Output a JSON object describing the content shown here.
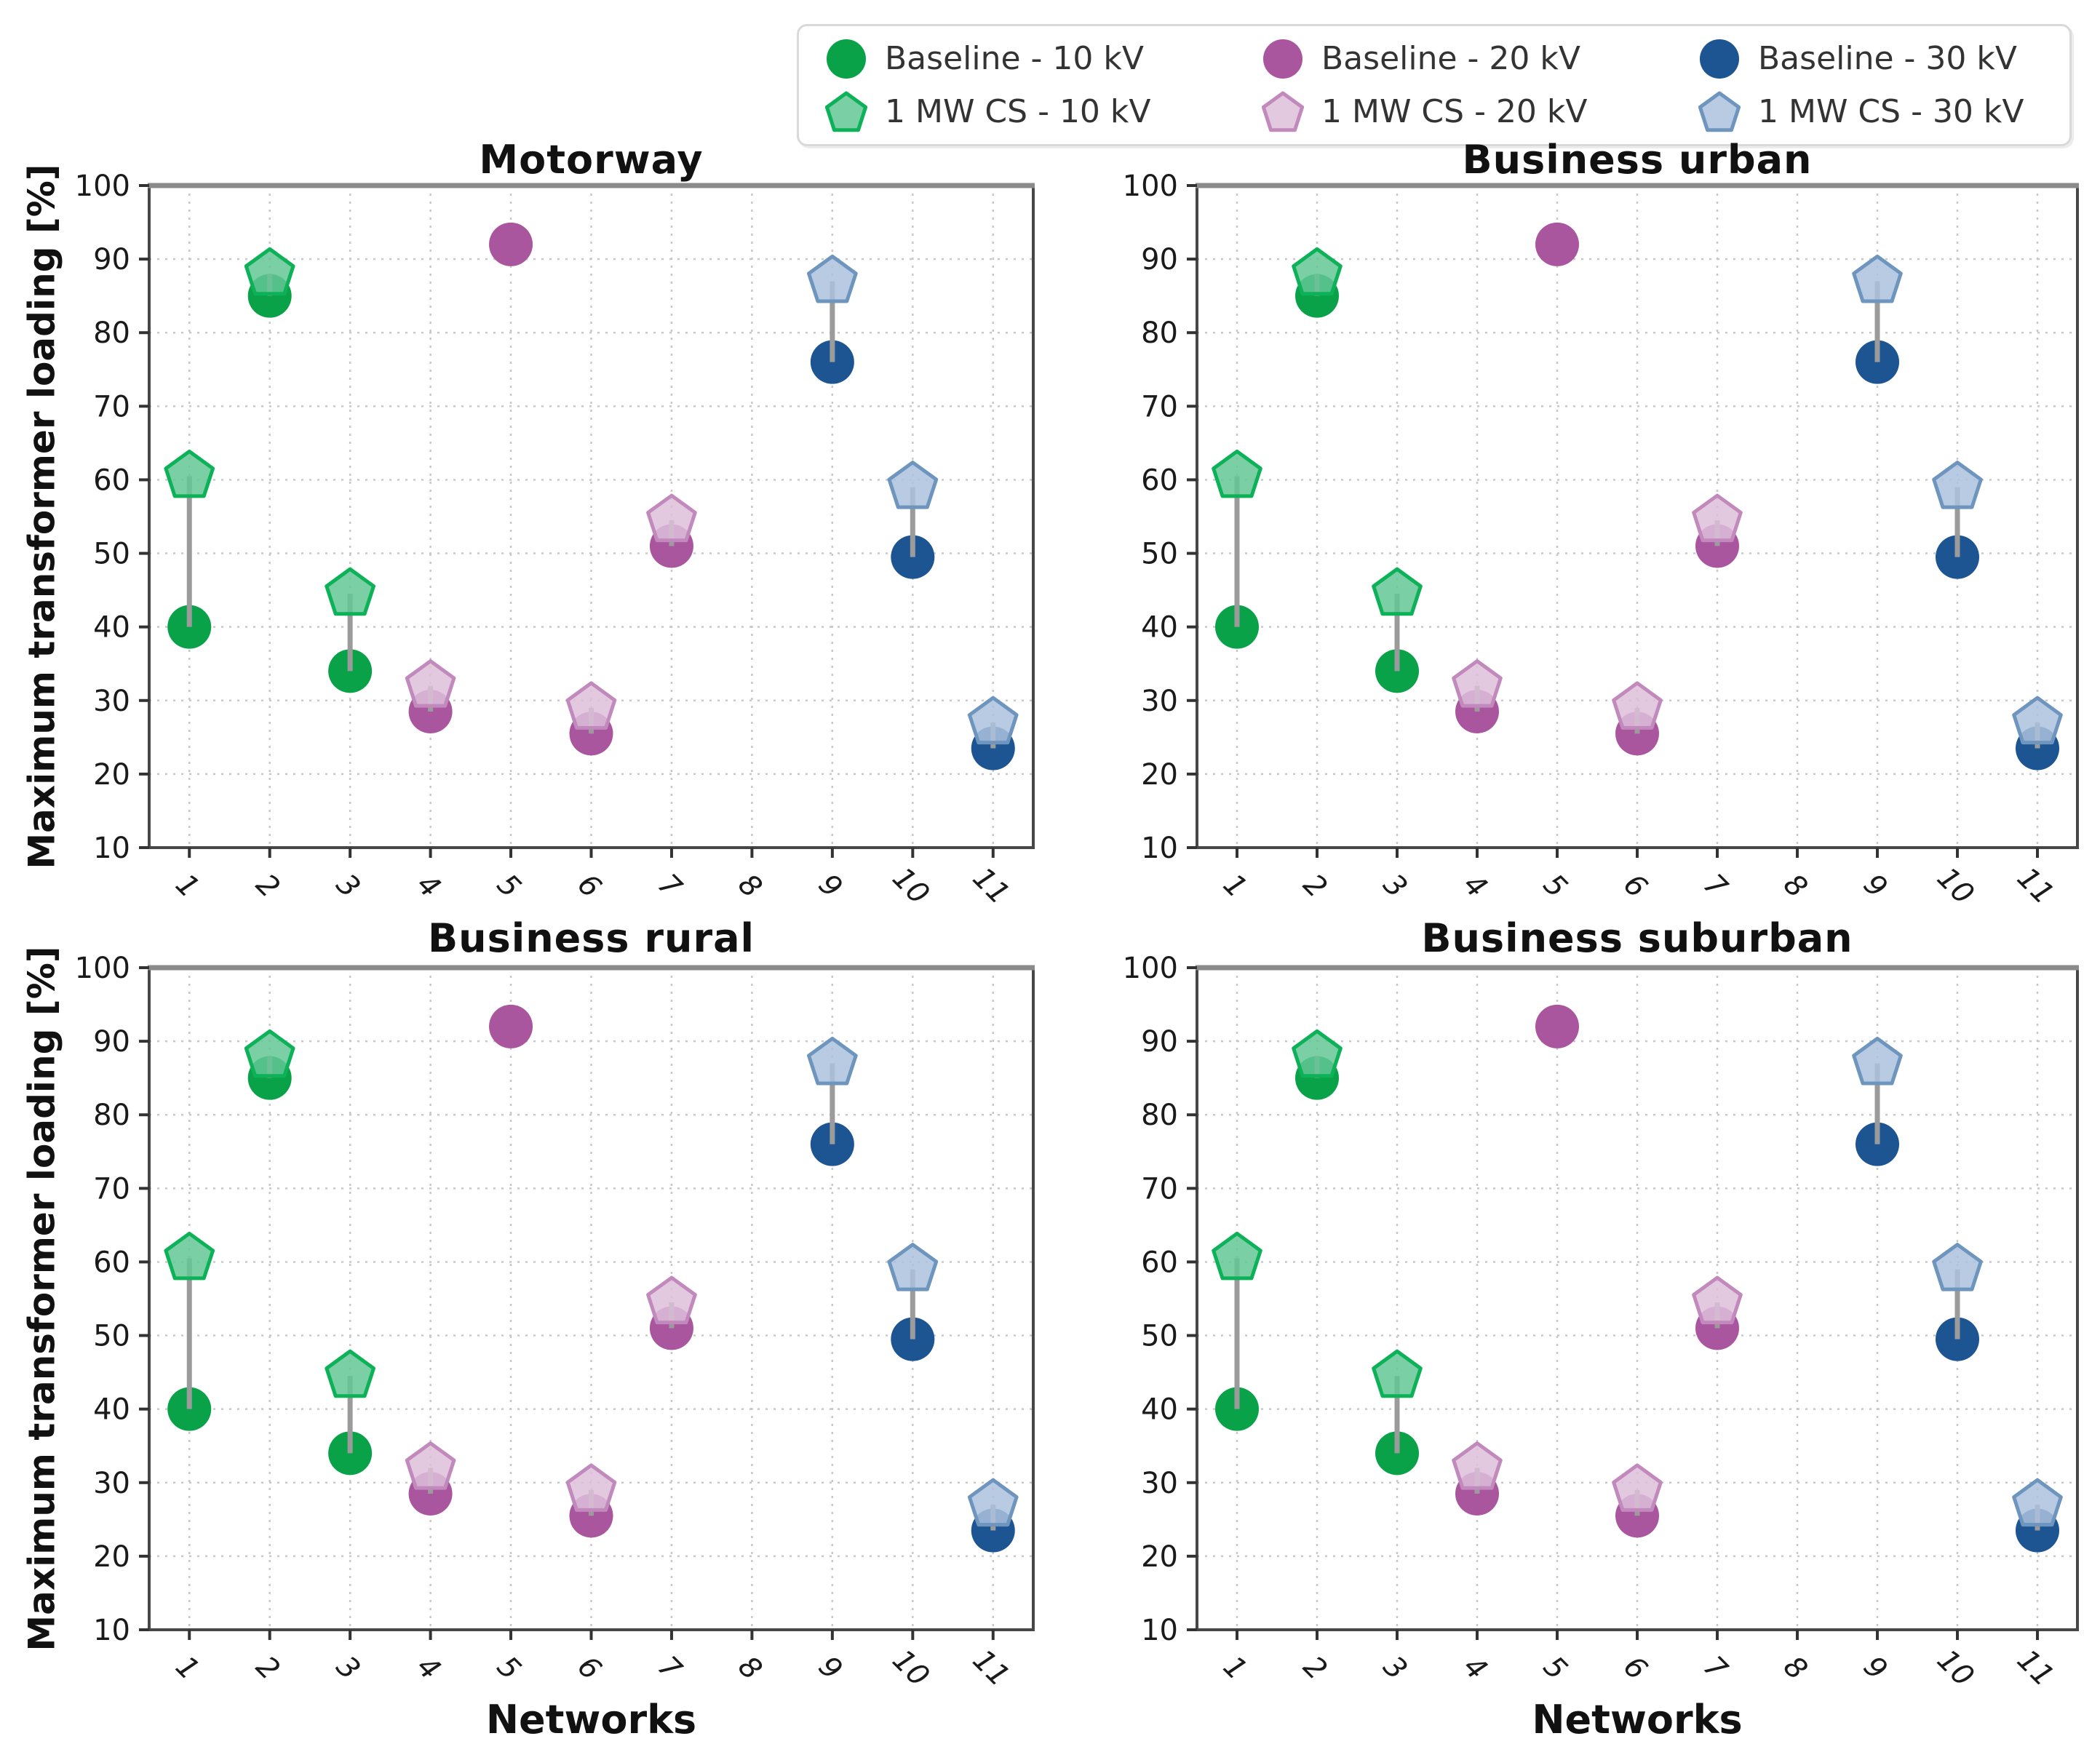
{
  "page": {
    "background": "#ffffff"
  },
  "chart_data": {
    "type": "scatter",
    "panels": [
      "Motorway",
      "Business urban",
      "Business rural",
      "Business suburban"
    ],
    "xlabel": "Networks",
    "ylabel": "Maximum transformer loading [%]",
    "x": [
      1,
      2,
      3,
      4,
      5,
      6,
      7,
      8,
      9,
      10,
      11
    ],
    "ylim": [
      10,
      100
    ],
    "ytick_step": 10,
    "grid": "dotted",
    "legend_position": "top-center-outside",
    "note": "All four panels display identical data values",
    "connector_color": "#9b9b9b",
    "series": [
      {
        "name": "Baseline - 10 kV",
        "marker": "circle",
        "voltage": "10 kV",
        "color": "#0aa249",
        "edge": "#0aa249",
        "values": [
          40,
          85,
          34,
          null,
          null,
          null,
          null,
          null,
          null,
          null,
          null
        ]
      },
      {
        "name": "1 MW CS - 10 kV",
        "marker": "pentagon",
        "voltage": "10 kV",
        "color": "#63c795",
        "edge": "#0db158",
        "values": [
          60.5,
          88,
          44.5,
          null,
          null,
          null,
          null,
          null,
          null,
          null,
          null
        ]
      },
      {
        "name": "Baseline - 20 kV",
        "marker": "circle",
        "voltage": "20 kV",
        "color": "#a9569f",
        "edge": "#a9569f",
        "values": [
          null,
          null,
          null,
          28.5,
          92,
          25.5,
          51,
          null,
          null,
          null,
          null
        ]
      },
      {
        "name": "1 MW CS - 20 kV",
        "marker": "pentagon",
        "voltage": "20 kV",
        "color": "#debfdb",
        "edge": "#c289bc",
        "values": [
          null,
          null,
          null,
          32,
          null,
          29,
          54.5,
          null,
          null,
          null,
          null
        ]
      },
      {
        "name": "Baseline - 30 kV",
        "marker": "circle",
        "voltage": "30 kV",
        "color": "#1d5492",
        "edge": "#1d5492",
        "values": [
          null,
          null,
          null,
          null,
          null,
          null,
          null,
          null,
          76,
          49.5,
          23.5
        ]
      },
      {
        "name": "1 MW CS - 30 kV",
        "marker": "pentagon",
        "voltage": "30 kV",
        "color": "#abc2dd",
        "edge": "#6e95be",
        "values": [
          null,
          null,
          null,
          null,
          null,
          null,
          null,
          null,
          87,
          59,
          27
        ]
      }
    ],
    "pairs": [
      [
        0,
        1
      ],
      [
        2,
        3
      ],
      [
        4,
        5
      ]
    ]
  },
  "legend": {
    "items": [
      {
        "label": "Baseline - 10 kV"
      },
      {
        "label": "1 MW CS - 10 kV"
      },
      {
        "label": "Baseline - 20 kV"
      },
      {
        "label": "1 MW CS - 20 kV"
      },
      {
        "label": "Baseline - 30 kV"
      },
      {
        "label": "1 MW CS - 30 kV"
      }
    ]
  },
  "style": {
    "spine_color": "#474747",
    "top_spine_color": "#8a8a8a",
    "grid_color": "#c8c8c8",
    "tick_label_color": "#1a1a1a"
  }
}
